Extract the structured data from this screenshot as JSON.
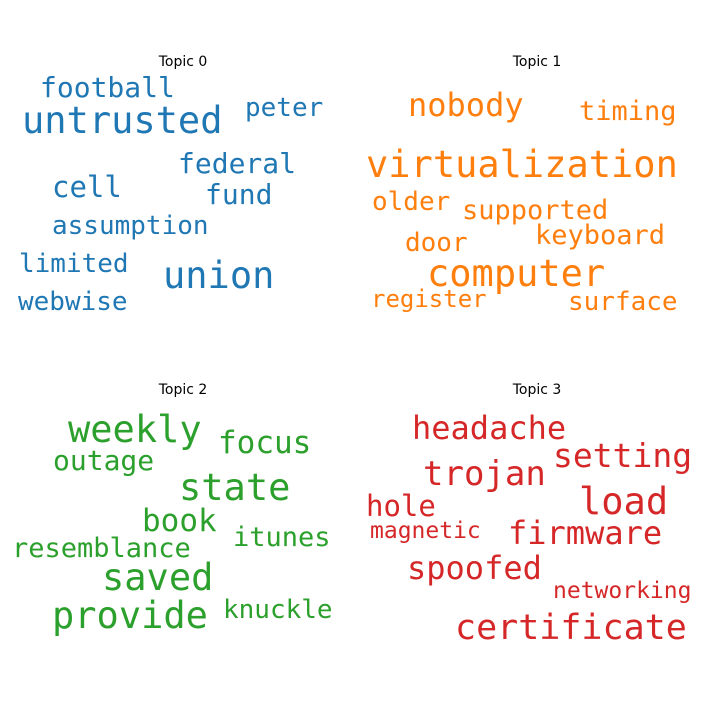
{
  "chart_data": [
    {
      "type": "wordcloud",
      "title": "Topic 0",
      "color": "#1f77b4",
      "words": [
        "untrusted",
        "union",
        "cell",
        "fund",
        "federal",
        "football",
        "peter",
        "assumption",
        "limited",
        "webwise"
      ]
    },
    {
      "type": "wordcloud",
      "title": "Topic 1",
      "color": "#ff7f0e",
      "words": [
        "virtualization",
        "computer",
        "nobody",
        "timing",
        "supported",
        "keyboard",
        "older",
        "door",
        "surface",
        "register"
      ]
    },
    {
      "type": "wordcloud",
      "title": "Topic 2",
      "color": "#2ca02c",
      "words": [
        "weekly",
        "state",
        "provide",
        "saved",
        "focus",
        "book",
        "outage",
        "itunes",
        "resemblance",
        "knuckle"
      ]
    },
    {
      "type": "wordcloud",
      "title": "Topic 3",
      "color": "#d62728",
      "words": [
        "load",
        "certificate",
        "trojan",
        "setting",
        "headache",
        "firmware",
        "spoofed",
        "hole",
        "magnetic",
        "networking"
      ]
    }
  ]
}
